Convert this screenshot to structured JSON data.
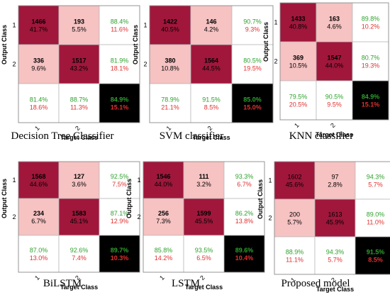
{
  "colors": {
    "diag": "#a0173b",
    "offdiag": "#f6c2c2",
    "summary": "#ffffff",
    "total": "#000000",
    "correct_text": "#2ea12e",
    "error_text": "#e03030"
  },
  "chart_data": [
    {
      "type": "heatmap",
      "title": "Decision Tree Classifier",
      "xlabel": "Target Class",
      "ylabel": "Output Class",
      "x_ticks": [
        "1",
        "2"
      ],
      "y_ticks": [
        "1",
        "2"
      ],
      "counts": [
        [
          1466,
          193
        ],
        [
          336,
          1517
        ]
      ],
      "cell_percents": [
        [
          "41.7%",
          "5.5%"
        ],
        [
          "9.6%",
          "43.2%"
        ]
      ],
      "row_summary": [
        [
          "88.4%",
          "11.6%"
        ],
        [
          "81.9%",
          "18.1%"
        ]
      ],
      "col_summary": [
        [
          "81.4%",
          "18.6%"
        ],
        [
          "88.7%",
          "11.3%"
        ]
      ],
      "total": [
        "84.9%",
        "15.1%"
      ]
    },
    {
      "type": "heatmap",
      "title": "SVM classifier",
      "xlabel": "Target Class",
      "ylabel": "Output Class",
      "x_ticks": [
        "1",
        "2"
      ],
      "y_ticks": [
        "1",
        "2"
      ],
      "counts": [
        [
          1422,
          146
        ],
        [
          380,
          1564
        ]
      ],
      "cell_percents": [
        [
          "40.5%",
          "4.2%"
        ],
        [
          "10.8%",
          "44.5%"
        ]
      ],
      "row_summary": [
        [
          "90.7%",
          "9.3%"
        ],
        [
          "80.5%",
          "19.5%"
        ]
      ],
      "col_summary": [
        [
          "78.9%",
          "21.1%"
        ],
        [
          "91.5%",
          "8.5%"
        ]
      ],
      "total": [
        "85.0%",
        "15.0%"
      ]
    },
    {
      "type": "heatmap",
      "title": "KNN classifier",
      "xlabel": "Target Class",
      "ylabel": "Output Class",
      "x_ticks": [
        "1",
        "2"
      ],
      "y_ticks": [
        "1",
        "2"
      ],
      "counts": [
        [
          1433,
          163
        ],
        [
          369,
          1547
        ]
      ],
      "cell_percents": [
        [
          "40.8%",
          "4.6%"
        ],
        [
          "10.5%",
          "44.0%"
        ]
      ],
      "row_summary": [
        [
          "89.8%",
          "10.2%"
        ],
        [
          "80.7%",
          "19.3%"
        ]
      ],
      "col_summary": [
        [
          "79.5%",
          "20.5%"
        ],
        [
          "90.5%",
          "9.5%"
        ]
      ],
      "total": [
        "84.9%",
        "15.1%"
      ]
    },
    {
      "type": "heatmap",
      "title": "BiLSTM",
      "xlabel": "Target Class",
      "ylabel": "Output Class",
      "x_ticks": [
        "1",
        "2"
      ],
      "y_ticks": [
        "1",
        "2"
      ],
      "counts": [
        [
          1568,
          127
        ],
        [
          234,
          1583
        ]
      ],
      "cell_percents": [
        [
          "44.6%",
          "3.6%"
        ],
        [
          "6.7%",
          "45.1%"
        ]
      ],
      "row_summary": [
        [
          "92.5%",
          "7.5%"
        ],
        [
          "87.1%",
          "12.9%"
        ]
      ],
      "col_summary": [
        [
          "87.0%",
          "13.0%"
        ],
        [
          "92.6%",
          "7.4%"
        ]
      ],
      "total": [
        "89.7%",
        "10.3%"
      ]
    },
    {
      "type": "heatmap",
      "title": "LSTM",
      "xlabel": "Target Class",
      "ylabel": "Output Class",
      "x_ticks": [
        "1",
        "2"
      ],
      "y_ticks": [
        "1",
        "2"
      ],
      "counts": [
        [
          1546,
          111
        ],
        [
          256,
          1599
        ]
      ],
      "cell_percents": [
        [
          "44.0%",
          "3.2%"
        ],
        [
          "7.3%",
          "45.5%"
        ]
      ],
      "row_summary": [
        [
          "93.3%",
          "6.7%"
        ],
        [
          "86.2%",
          "13.8%"
        ]
      ],
      "col_summary": [
        [
          "85.8%",
          "14.2%"
        ],
        [
          "93.5%",
          "6.5%"
        ]
      ],
      "total": [
        "89.6%",
        "10.4%"
      ]
    },
    {
      "type": "heatmap",
      "title": "Proposed model",
      "xlabel": "Target Class",
      "ylabel": "Output Class",
      "x_ticks": [
        "1",
        "2"
      ],
      "y_ticks": [
        "1",
        "2"
      ],
      "counts": [
        [
          1602,
          97
        ],
        [
          200,
          1613
        ]
      ],
      "cell_percents": [
        [
          "45.6%",
          "2.8%"
        ],
        [
          "5.7%",
          "45.9%"
        ]
      ],
      "row_summary": [
        [
          "94.3%",
          "5.7%"
        ],
        [
          "89.0%",
          "11.0%"
        ]
      ],
      "col_summary": [
        [
          "88.9%",
          "11.1%"
        ],
        [
          "94.3%",
          "5.7%"
        ]
      ],
      "total": [
        "91.5%",
        "8.5%"
      ]
    }
  ]
}
